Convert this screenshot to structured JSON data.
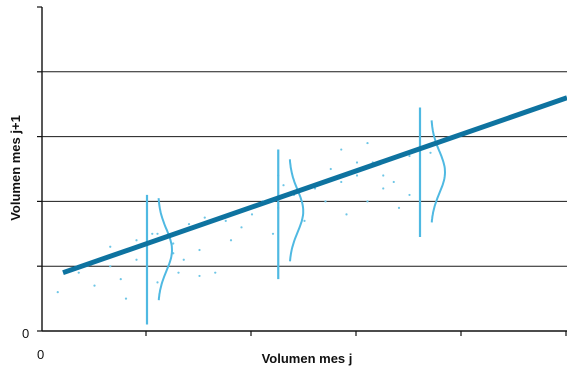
{
  "chart_data": {
    "type": "scatter",
    "title": "",
    "xlabel": "Volumen mes j",
    "ylabel": "Volumen mes j+1",
    "x_tick_labels": [
      "0"
    ],
    "y_tick_labels": [
      "0"
    ],
    "xlim": [
      0,
      100
    ],
    "ylim": [
      0,
      100
    ],
    "grid": "horizontal",
    "colors": {
      "line": "#0e73a0",
      "points": "#6ec6e6",
      "error_bars": "#4fb9e2",
      "grid": "#1a1a1a"
    },
    "regression_line": {
      "x": [
        4,
        100
      ],
      "y": [
        18,
        72
      ]
    },
    "points": {
      "x": [
        3,
        7,
        10,
        13,
        15,
        16,
        18,
        22,
        25,
        26,
        13,
        18,
        20,
        22,
        25,
        27,
        28,
        30,
        31,
        33,
        36,
        38,
        40,
        42,
        44,
        45,
        46,
        48,
        50,
        52,
        54,
        55,
        57,
        58,
        60,
        62,
        63,
        65,
        67,
        68,
        70,
        72,
        74,
        57,
        60,
        62,
        65,
        70,
        35,
        45,
        21,
        30
      ],
      "y": [
        12,
        18,
        14,
        20,
        16,
        10,
        22,
        15,
        24,
        18,
        26,
        28,
        20,
        30,
        27,
        22,
        33,
        25,
        35,
        18,
        28,
        32,
        36,
        40,
        30,
        38,
        45,
        42,
        34,
        44,
        40,
        50,
        46,
        36,
        48,
        40,
        52,
        44,
        46,
        38,
        54,
        50,
        55,
        56,
        52,
        58,
        48,
        42,
        34,
        48,
        30,
        17
      ]
    },
    "conditional_distributions": [
      {
        "x": 20,
        "mean": 25,
        "low": 2,
        "high": 42
      },
      {
        "x": 45,
        "mean": 37,
        "low": 16,
        "high": 56
      },
      {
        "x": 72,
        "mean": 49,
        "low": 29,
        "high": 69
      }
    ]
  }
}
